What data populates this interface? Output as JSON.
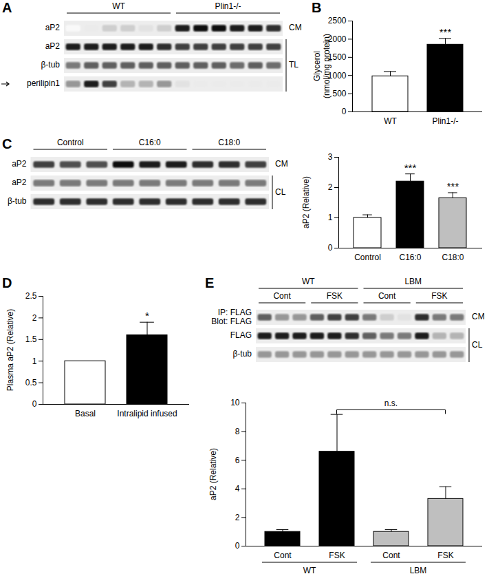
{
  "chart_data": [
    {
      "type": "bar",
      "title": "B",
      "categories": [
        "WT",
        "Plin1-/-"
      ],
      "values": [
        980,
        1850
      ],
      "errors": [
        130,
        170
      ],
      "colors": [
        "#ffffff",
        "#000000"
      ],
      "significance": [
        null,
        "***"
      ],
      "y_label": "Glycerol (nmol/mg protein)",
      "ylim": [
        0,
        2500
      ],
      "yticks": [
        0,
        500,
        1000,
        1500,
        2000,
        2500
      ]
    },
    {
      "type": "bar",
      "categories": [
        "Control",
        "C16:0",
        "C18:0"
      ],
      "values": [
        1,
        2.2,
        1.65
      ],
      "errors": [
        0.1,
        0.25,
        0.18
      ],
      "colors": [
        "#ffffff",
        "#000000",
        "#bfbfbf"
      ],
      "significance": [
        null,
        "***",
        "***"
      ],
      "y_label": "aP2 (Relative)",
      "ylim": [
        0,
        3
      ],
      "yticks": [
        0,
        1,
        2,
        3
      ]
    },
    {
      "type": "bar",
      "title": "D",
      "categories": [
        "Basal",
        "Intralipid infused"
      ],
      "values": [
        1,
        1.6
      ],
      "errors": [
        null,
        0.3
      ],
      "colors": [
        "#ffffff",
        "#000000"
      ],
      "significance": [
        null,
        "*"
      ],
      "y_label": "Plasma aP2 (Relative)",
      "ylim": [
        0,
        2.5
      ],
      "yticks": [
        0,
        0.5,
        1,
        1.5,
        2,
        2.5
      ]
    },
    {
      "type": "bar",
      "categories": [
        "Cont",
        "FSK",
        "Cont",
        "FSK"
      ],
      "group_labels": [
        "WT",
        "WT",
        "LBM",
        "LBM"
      ],
      "values": [
        1,
        6.6,
        1,
        3.3
      ],
      "errors": [
        0.15,
        2.6,
        0.15,
        0.85
      ],
      "colors": [
        "#000000",
        "#000000",
        "#bfbfbf",
        "#bfbfbf"
      ],
      "comparison": {
        "text": "n.s.",
        "between": [
          1,
          3
        ],
        "y": 9.5
      },
      "y_label": "aP2 (Relative)",
      "ylim": [
        0,
        10
      ],
      "yticks": [
        0,
        2,
        4,
        6,
        8,
        10
      ]
    }
  ],
  "blots": [
    {
      "title": "A",
      "groups": [
        {
          "label": "WT",
          "lanes": 6
        },
        {
          "label": "Plin1-/-",
          "lanes": 6
        }
      ],
      "rows": [
        {
          "label": "aP2",
          "intensity": [
            0.05,
            0.15,
            0.3,
            0.3,
            0.2,
            0.3,
            0.9,
            0.95,
            0.95,
            0.9,
            0.9,
            0.85
          ]
        },
        {
          "label": "aP2",
          "intensity": [
            0.9,
            0.9,
            0.9,
            0.9,
            0.9,
            0.85,
            0.8,
            0.8,
            0.8,
            0.8,
            0.8,
            0.8
          ]
        },
        {
          "label": "β-tub",
          "intensity": [
            0.6,
            0.7,
            0.7,
            0.7,
            0.7,
            0.7,
            0.7,
            0.7,
            0.7,
            0.65,
            0.7,
            0.65
          ]
        },
        {
          "label": "perilipin1",
          "arrow": true,
          "intensity": [
            0.5,
            0.9,
            0.8,
            0.4,
            0.4,
            0.5,
            0.2,
            0.15,
            0.15,
            0.15,
            0.15,
            0.15
          ]
        }
      ],
      "brackets": [
        {
          "label": "CM",
          "rows": 1
        },
        {
          "label": "TL",
          "rows": 3
        }
      ]
    },
    {
      "title": "C",
      "groups": [
        {
          "label": "Control",
          "lanes": 3
        },
        {
          "label": "C16:0",
          "lanes": 3
        },
        {
          "label": "C18:0",
          "lanes": 3
        }
      ],
      "rows": [
        {
          "label": "aP2",
          "intensity": [
            0.8,
            0.75,
            0.75,
            0.95,
            0.9,
            0.9,
            0.85,
            0.85,
            0.8
          ]
        },
        {
          "label": "aP2",
          "intensity": [
            0.6,
            0.6,
            0.6,
            0.6,
            0.6,
            0.6,
            0.6,
            0.6,
            0.6
          ]
        },
        {
          "label": "β-tub",
          "intensity": [
            0.85,
            0.85,
            0.85,
            0.85,
            0.85,
            0.85,
            0.85,
            0.85,
            0.85
          ]
        }
      ],
      "brackets": [
        {
          "label": "CM",
          "rows": 1
        },
        {
          "label": "CL",
          "rows": 2
        }
      ]
    },
    {
      "title": "E",
      "groups": [
        {
          "label": "WT",
          "sub": [
            {
              "label": "Cont",
              "lanes": 3
            },
            {
              "label": "FSK",
              "lanes": 3
            }
          ]
        },
        {
          "label": "LBM",
          "sub": [
            {
              "label": "Cont",
              "lanes": 3
            },
            {
              "label": "FSK",
              "lanes": 3
            }
          ]
        }
      ],
      "rows": [
        {
          "label": [
            "IP: FLAG",
            "Blot: FLAG"
          ],
          "intensity": [
            0.7,
            0.5,
            0.5,
            0.7,
            0.8,
            0.8,
            0.6,
            0.3,
            0.2,
            0.85,
            0.6,
            0.6
          ]
        },
        {
          "label": "FLAG",
          "intensity": [
            0.9,
            0.9,
            0.9,
            0.9,
            0.9,
            0.85,
            0.7,
            0.6,
            0.6,
            0.9,
            0.4,
            0.4
          ]
        },
        {
          "label": "β-tub",
          "intensity": [
            0.5,
            0.5,
            0.5,
            0.5,
            0.5,
            0.5,
            0.5,
            0.5,
            0.5,
            0.5,
            0.5,
            0.5
          ]
        }
      ],
      "brackets": [
        {
          "label": "CM",
          "rows": 1
        },
        {
          "label": "CL",
          "rows": 2
        }
      ]
    }
  ]
}
